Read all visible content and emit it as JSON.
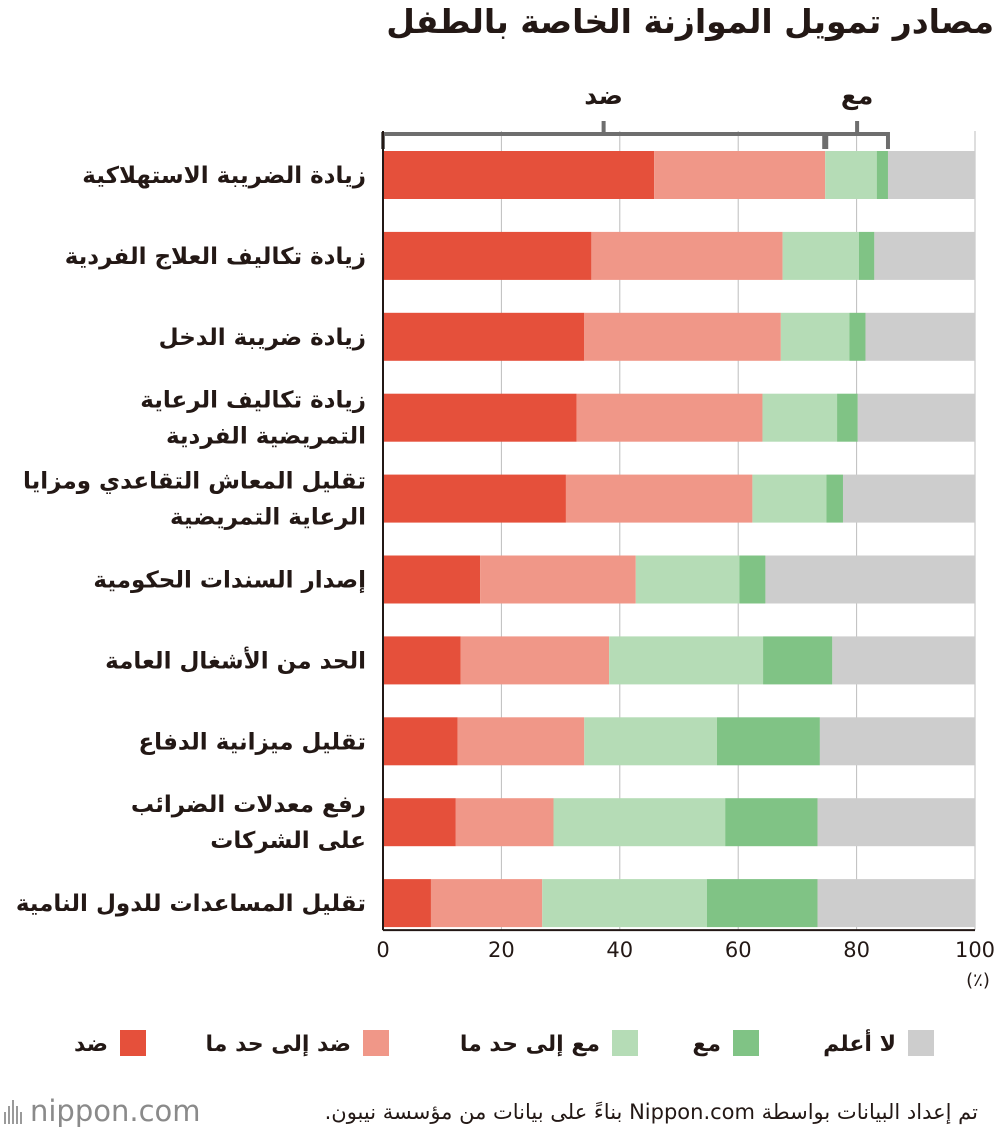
{
  "chart_data": {
    "type": "bar",
    "orientation": "horizontal",
    "stacked": true,
    "title": "مصادر تمويل الموازنة الخاصة بالطفل",
    "categories": [
      [
        "زيادة الضريبة الاستهلاكية"
      ],
      [
        "زيادة تكاليف العلاج الفردية"
      ],
      [
        "زيادة ضريبة الدخل"
      ],
      [
        "زيادة تكاليف الرعاية",
        "التمريضية الفردية"
      ],
      [
        "تقليل المعاش التقاعدي ومزايا",
        "الرعاية التمريضية"
      ],
      [
        "إصدار السندات الحكومية"
      ],
      [
        "الحد من الأشغال العامة"
      ],
      [
        "تقليل ميزانية الدفاع"
      ],
      [
        "رفع معدلات الضرائب",
        "على الشركات"
      ],
      [
        "تقليل المساعدات للدول النامية"
      ]
    ],
    "series": [
      {
        "name": "ضد",
        "color": "#e5503b",
        "values": [
          45.8,
          35.2,
          34.0,
          32.7,
          30.9,
          16.4,
          13.1,
          12.6,
          12.3,
          8.1
        ]
      },
      {
        "name": "ضد إلى حد ما",
        "color": "#f09788",
        "values": [
          28.9,
          32.3,
          33.2,
          31.4,
          31.5,
          26.3,
          25.1,
          21.4,
          16.5,
          18.8
        ]
      },
      {
        "name": "مع إلى حد ما",
        "color": "#b5dcb6",
        "values": [
          8.7,
          12.9,
          11.6,
          12.6,
          12.5,
          17.5,
          26.0,
          22.4,
          29.0,
          27.8
        ]
      },
      {
        "name": "مع",
        "color": "#80c385",
        "values": [
          1.9,
          2.6,
          2.7,
          3.5,
          2.8,
          4.4,
          11.7,
          17.4,
          15.6,
          18.7
        ]
      },
      {
        "name": "لا أعلم",
        "color": "#cdcdcd",
        "values": [
          14.7,
          17.0,
          18.5,
          19.8,
          22.3,
          35.4,
          24.1,
          26.2,
          26.6,
          26.6
        ]
      }
    ],
    "xlim": [
      0,
      100
    ],
    "xticks": [
      0,
      20,
      40,
      60,
      80,
      100
    ],
    "xlabel": "(٪)",
    "grid": true,
    "legend_position": "bottom",
    "brackets": [
      {
        "label": "ضد",
        "from": 0,
        "to": 74.7
      },
      {
        "label": "مع",
        "from": 74.7,
        "to": 85.3
      }
    ]
  },
  "footer": {
    "source": "تم إعداد البيانات بواسطة Nippon.com بناءً على بيانات من مؤسسة نيبون.",
    "brand": "nippon.com"
  }
}
